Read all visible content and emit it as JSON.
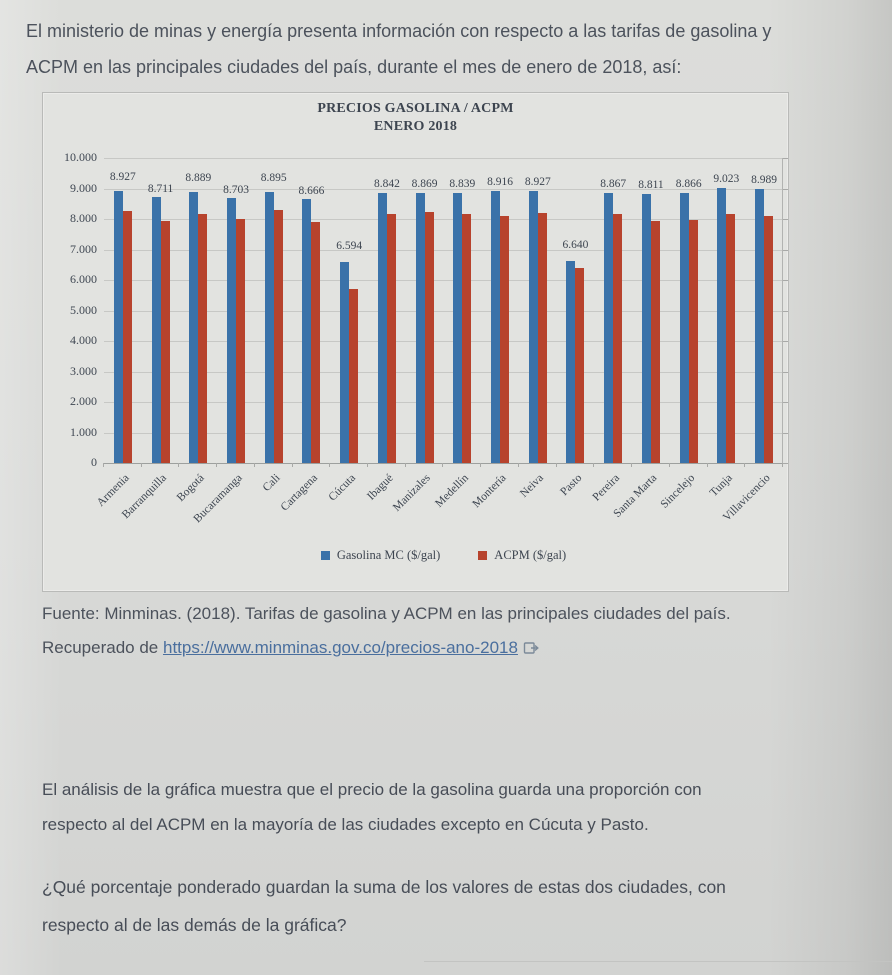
{
  "page": {
    "intro_lines": [
      "El ministerio de minas y energía presenta información con respecto a las tarifas de gasolina y",
      "ACPM en las principales ciudades del país, durante el mes de enero de 2018, así:"
    ],
    "source_citation": "Fuente: Minminas. (2018). Tarifas de gasolina y ACPM en las principales ciudades del país.",
    "source_prefix": "Recuperado de ",
    "source_link": "https://www.minminas.gov.co/precios-ano-2018",
    "icons": {
      "source_link_icon": "external-link-icon"
    },
    "analysis_lines": [
      "El análisis de la gráfica muestra que el precio de la gasolina guarda una proporción con",
      "respecto al del ACPM en la mayoría de las ciudades excepto en Cúcuta y Pasto."
    ],
    "question_lines": [
      "¿Qué porcentaje ponderado guardan la suma de los valores de estas dos ciudades, con",
      "respecto al de las demás de la gráfica?"
    ]
  },
  "chart_data": {
    "type": "bar",
    "title": "PRECIOS GASOLINA / ACPM",
    "subtitle": "ENERO 2018",
    "categories": [
      "Armenia",
      "Barranquilla",
      "Bogotá",
      "Bucaramanga",
      "Cali",
      "Cartagena",
      "Cúcuta",
      "Ibagué",
      "Manizales",
      "Medellín",
      "Montería",
      "Neiva",
      "Pasto",
      "Pereira",
      "Santa Marta",
      "Sincelejo",
      "Tunja",
      "Villavicencio"
    ],
    "series": [
      {
        "name": "Gasolina MC ($/gal)",
        "color": "#3a72a9",
        "values": [
          8927,
          8711,
          8889,
          8703,
          8895,
          8666,
          6594,
          8842,
          8869,
          8839,
          8916,
          8927,
          6640,
          8867,
          8811,
          8866,
          9023,
          8989
        ],
        "labels": [
          "8.927",
          "8.711",
          "8.889",
          "8.703",
          "8.895",
          "8.666",
          "6.594",
          "8.842",
          "8.869",
          "8.839",
          "8.916",
          "8.927",
          "6.640",
          "8.867",
          "8.811",
          "8.866",
          "9.023",
          "8.989"
        ]
      },
      {
        "name": "ACPM ($/gal)",
        "color": "#b7432d",
        "values": [
          8280,
          7950,
          8150,
          8000,
          8290,
          7890,
          5720,
          8180,
          8220,
          8180,
          8090,
          8200,
          6390,
          8150,
          7930,
          7980,
          8170,
          8110
        ]
      }
    ],
    "ylim": [
      0,
      10000
    ],
    "ytick_labels": [
      "10.000",
      "9.000",
      "8.000",
      "7.000",
      "6.000",
      "5.000",
      "4.000",
      "3.000",
      "2.000",
      "1.000",
      "0"
    ],
    "xlabel": "",
    "ylabel": "",
    "grid": true,
    "legend_position": "bottom"
  }
}
